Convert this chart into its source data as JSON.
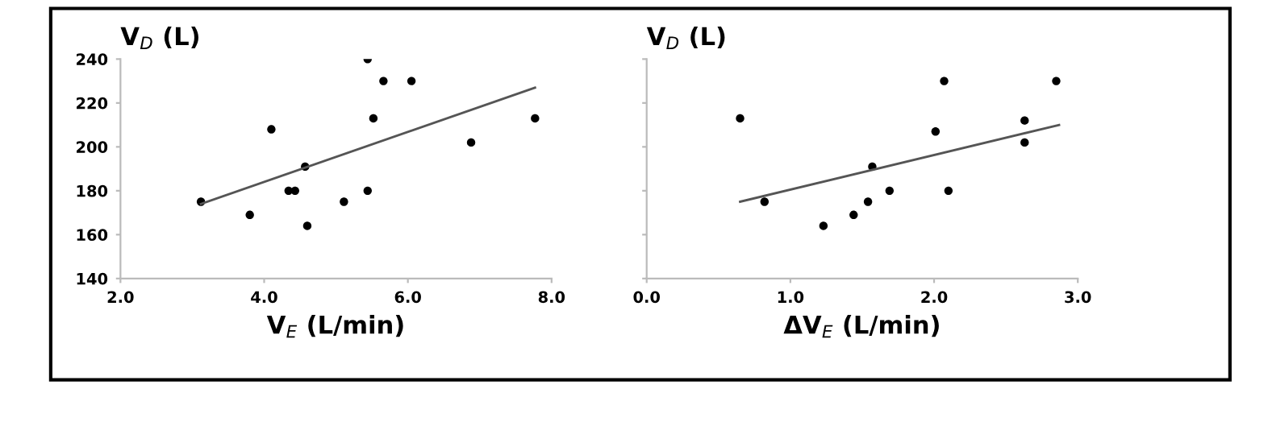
{
  "chart_data": [
    {
      "type": "scatter",
      "ylabel": "V$_{D}$ (L)",
      "xlabel": "V$_{E}$ (L/min)",
      "xlim": [
        2.0,
        8.0
      ],
      "xticks": [
        {
          "value": 2,
          "label": "2.0"
        },
        {
          "value": 4,
          "label": "4.0"
        },
        {
          "value": 6,
          "label": "6.0"
        },
        {
          "value": 8,
          "label": "8.0"
        }
      ],
      "ylim": [
        140,
        240
      ],
      "yticks": [
        140,
        160,
        180,
        200,
        220,
        240
      ],
      "grid": false,
      "marker": "circle",
      "series": [
        {
          "color": "#000000",
          "x": [
            3.12,
            3.8,
            4.1,
            4.34,
            4.43,
            4.57,
            4.6,
            5.11,
            5.44,
            5.44,
            5.52,
            5.66,
            6.05,
            6.88,
            7.77
          ],
          "values": [
            175,
            169,
            208,
            180,
            180,
            191,
            164,
            175,
            240,
            180,
            213,
            230,
            230,
            202,
            213
          ]
        },
        {
          "type": "line",
          "color": "#555555",
          "marker": "none",
          "x": [
            3.12,
            7.77
          ],
          "values": [
            174,
            227
          ]
        }
      ]
    },
    {
      "type": "scatter",
      "ylabel": "V$_{D}$ (L)",
      "xlabel": "ΔV$_{E}$ (L/min)",
      "xlim": [
        0.0,
        3.0
      ],
      "xticks": [
        {
          "value": 0,
          "label": "0.0"
        },
        {
          "value": 1,
          "label": "1.0"
        },
        {
          "value": 2,
          "label": "2.0"
        },
        {
          "value": 3,
          "label": "3.0"
        }
      ],
      "ylim": [
        140,
        240
      ],
      "yticks": [
        140,
        160,
        180,
        200,
        220,
        240
      ],
      "tick_labels": "x",
      "grid": false,
      "marker": "circle",
      "series": [
        {
          "color": "#000000",
          "x": [
            0.65,
            0.82,
            1.23,
            1.44,
            1.54,
            1.57,
            1.69,
            2.01,
            2.07,
            2.1,
            2.63,
            2.63,
            2.85
          ],
          "values": [
            213,
            175,
            164,
            169,
            175,
            191,
            180,
            207,
            230,
            180,
            212,
            202,
            230
          ]
        },
        {
          "type": "line",
          "color": "#555555",
          "marker": "none",
          "x": [
            0.65,
            2.87
          ],
          "values": [
            175,
            210
          ]
        }
      ]
    }
  ]
}
